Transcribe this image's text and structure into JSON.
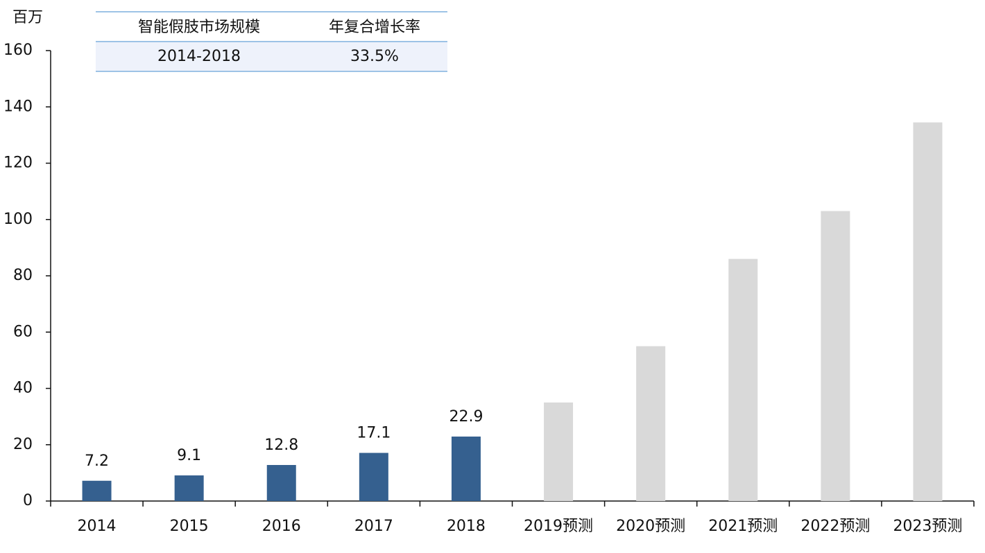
{
  "chart_data": {
    "type": "bar",
    "y_label": "百万",
    "categories": [
      "2014",
      "2015",
      "2016",
      "2017",
      "2018",
      "2019预测",
      "2020预测",
      "2021预测",
      "2022预测",
      "2023预测"
    ],
    "series": [
      {
        "color": "#35608f",
        "data_labels": true,
        "values": [
          7.2,
          9.1,
          12.8,
          17.1,
          22.9,
          null,
          null,
          null,
          null,
          null
        ]
      },
      {
        "color": "#d9d9d9",
        "data_labels": false,
        "values": [
          null,
          null,
          null,
          null,
          null,
          35,
          55,
          86,
          103,
          134.5
        ]
      }
    ],
    "ylim": [
      0,
      160
    ],
    "yticks": [
      0,
      20,
      40,
      60,
      80,
      100,
      120,
      140,
      160
    ],
    "grid": false,
    "table": {
      "header": [
        "智能假肢市场规模",
        "年复合增长率"
      ],
      "rows": [
        [
          "2014-2018",
          "33.5%"
        ]
      ]
    }
  }
}
